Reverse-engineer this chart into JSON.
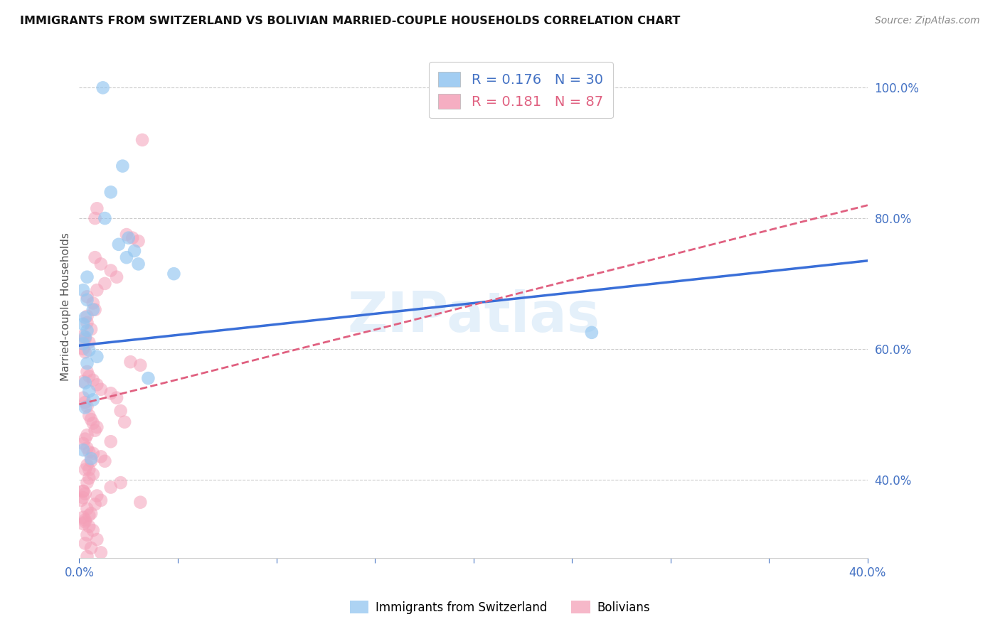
{
  "title": "IMMIGRANTS FROM SWITZERLAND VS BOLIVIAN MARRIED-COUPLE HOUSEHOLDS CORRELATION CHART",
  "source": "Source: ZipAtlas.com",
  "ylabel": "Married-couple Households",
  "right_yticks": [
    "100.0%",
    "80.0%",
    "60.0%",
    "40.0%"
  ],
  "right_ytick_vals": [
    1.0,
    0.8,
    0.6,
    0.4
  ],
  "xmin": 0.0,
  "xmax": 0.4,
  "ymin": 0.28,
  "ymax": 1.05,
  "color_blue": "#92c5f0",
  "color_pink": "#f4a0b8",
  "color_line_blue": "#3a6fd8",
  "color_line_pink": "#e06080",
  "watermark": "ZIPatlas",
  "blue_line_x0": 0.0,
  "blue_line_y0": 0.605,
  "blue_line_x1": 0.4,
  "blue_line_y1": 0.735,
  "pink_line_x0": 0.0,
  "pink_line_y0": 0.515,
  "pink_line_x1": 0.4,
  "pink_line_y1": 0.82,
  "swiss_data": [
    [
      0.012,
      1.0
    ],
    [
      0.022,
      0.88
    ],
    [
      0.016,
      0.84
    ],
    [
      0.013,
      0.8
    ],
    [
      0.025,
      0.77
    ],
    [
      0.02,
      0.76
    ],
    [
      0.028,
      0.75
    ],
    [
      0.024,
      0.74
    ],
    [
      0.03,
      0.73
    ],
    [
      0.048,
      0.715
    ],
    [
      0.004,
      0.71
    ],
    [
      0.002,
      0.69
    ],
    [
      0.004,
      0.675
    ],
    [
      0.007,
      0.66
    ],
    [
      0.003,
      0.648
    ],
    [
      0.002,
      0.638
    ],
    [
      0.004,
      0.628
    ],
    [
      0.003,
      0.618
    ],
    [
      0.002,
      0.608
    ],
    [
      0.005,
      0.598
    ],
    [
      0.009,
      0.588
    ],
    [
      0.004,
      0.578
    ],
    [
      0.035,
      0.555
    ],
    [
      0.003,
      0.548
    ],
    [
      0.005,
      0.535
    ],
    [
      0.007,
      0.522
    ],
    [
      0.003,
      0.51
    ],
    [
      0.002,
      0.445
    ],
    [
      0.006,
      0.432
    ],
    [
      0.26,
      0.625
    ]
  ],
  "bolivian_data": [
    [
      0.032,
      0.92
    ],
    [
      0.009,
      0.815
    ],
    [
      0.008,
      0.8
    ],
    [
      0.024,
      0.775
    ],
    [
      0.027,
      0.77
    ],
    [
      0.03,
      0.765
    ],
    [
      0.008,
      0.74
    ],
    [
      0.011,
      0.73
    ],
    [
      0.016,
      0.72
    ],
    [
      0.019,
      0.71
    ],
    [
      0.013,
      0.7
    ],
    [
      0.009,
      0.69
    ],
    [
      0.004,
      0.68
    ],
    [
      0.007,
      0.67
    ],
    [
      0.008,
      0.66
    ],
    [
      0.004,
      0.65
    ],
    [
      0.004,
      0.64
    ],
    [
      0.006,
      0.63
    ],
    [
      0.002,
      0.62
    ],
    [
      0.003,
      0.615
    ],
    [
      0.005,
      0.61
    ],
    [
      0.002,
      0.6
    ],
    [
      0.003,
      0.595
    ],
    [
      0.026,
      0.58
    ],
    [
      0.031,
      0.575
    ],
    [
      0.004,
      0.565
    ],
    [
      0.005,
      0.558
    ],
    [
      0.007,
      0.552
    ],
    [
      0.009,
      0.545
    ],
    [
      0.011,
      0.538
    ],
    [
      0.016,
      0.532
    ],
    [
      0.002,
      0.525
    ],
    [
      0.003,
      0.518
    ],
    [
      0.004,
      0.512
    ],
    [
      0.021,
      0.505
    ],
    [
      0.005,
      0.498
    ],
    [
      0.006,
      0.492
    ],
    [
      0.007,
      0.486
    ],
    [
      0.009,
      0.48
    ],
    [
      0.008,
      0.475
    ],
    [
      0.004,
      0.468
    ],
    [
      0.003,
      0.462
    ],
    [
      0.002,
      0.455
    ],
    [
      0.004,
      0.448
    ],
    [
      0.005,
      0.442
    ],
    [
      0.011,
      0.435
    ],
    [
      0.006,
      0.428
    ],
    [
      0.004,
      0.422
    ],
    [
      0.003,
      0.415
    ],
    [
      0.007,
      0.408
    ],
    [
      0.005,
      0.402
    ],
    [
      0.004,
      0.395
    ],
    [
      0.016,
      0.388
    ],
    [
      0.002,
      0.382
    ],
    [
      0.009,
      0.375
    ],
    [
      0.011,
      0.368
    ],
    [
      0.008,
      0.362
    ],
    [
      0.004,
      0.355
    ],
    [
      0.006,
      0.348
    ],
    [
      0.002,
      0.342
    ],
    [
      0.003,
      0.335
    ],
    [
      0.005,
      0.328
    ],
    [
      0.007,
      0.322
    ],
    [
      0.004,
      0.315
    ],
    [
      0.009,
      0.308
    ],
    [
      0.003,
      0.302
    ],
    [
      0.006,
      0.295
    ],
    [
      0.011,
      0.288
    ],
    [
      0.004,
      0.282
    ],
    [
      0.005,
      0.345
    ],
    [
      0.003,
      0.338
    ],
    [
      0.002,
      0.332
    ],
    [
      0.002,
      0.382
    ],
    [
      0.003,
      0.378
    ],
    [
      0.002,
      0.372
    ],
    [
      0.001,
      0.368
    ],
    [
      0.002,
      0.55
    ],
    [
      0.019,
      0.525
    ],
    [
      0.023,
      0.488
    ],
    [
      0.016,
      0.458
    ],
    [
      0.013,
      0.428
    ],
    [
      0.021,
      0.395
    ],
    [
      0.031,
      0.365
    ],
    [
      0.007,
      0.44
    ],
    [
      0.005,
      0.415
    ]
  ]
}
